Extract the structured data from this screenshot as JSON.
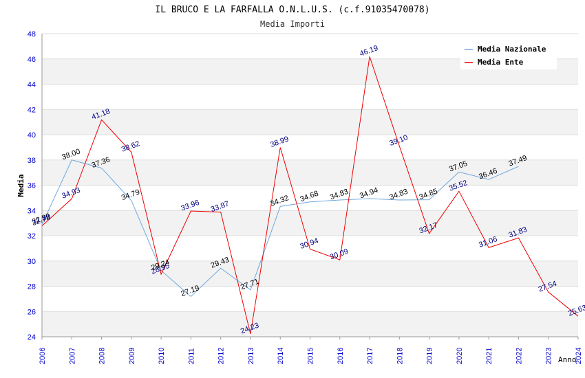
{
  "chart_data": {
    "type": "line",
    "title": "IL BRUCO E LA FARFALLA O.N.L.U.S. (c.f.91035470078)",
    "subtitle": "Media Importi",
    "ylabel": "Media",
    "xlabel": "Anno",
    "ylim": [
      24,
      48
    ],
    "yticks": [
      24,
      26,
      28,
      30,
      32,
      34,
      36,
      38,
      40,
      42,
      44,
      46,
      48
    ],
    "x": [
      "2006",
      "2007",
      "2008",
      "2009",
      "2010",
      "2011",
      "2012",
      "2013",
      "2014",
      "2015",
      "2016",
      "2017",
      "2018",
      "2019",
      "2020",
      "2021",
      "2022",
      "2023",
      "2024"
    ],
    "series": [
      {
        "name": "Media Nazionale",
        "color": "#6fa8dc",
        "label_color": "#000000",
        "values": [
          32.89,
          38.0,
          37.36,
          34.79,
          29.24,
          27.19,
          29.43,
          27.71,
          34.32,
          34.68,
          34.83,
          34.94,
          34.83,
          34.85,
          37.05,
          36.46,
          37.49,
          null,
          null
        ],
        "labels": [
          "32.89",
          "38.00",
          "37.36",
          "34.79",
          "29.24",
          "27.19",
          "29.43",
          "27.71",
          "34.32",
          "34.68",
          "34.83",
          "34.94",
          "34.83",
          "34.85",
          "37.05",
          "36.46",
          "37.49",
          null,
          null
        ]
      },
      {
        "name": "Media Ente",
        "color": "#ee0000",
        "label_color": "#000080",
        "values": [
          32.78,
          34.93,
          41.18,
          38.62,
          28.95,
          33.96,
          33.87,
          24.23,
          38.99,
          30.94,
          30.09,
          46.19,
          39.1,
          32.17,
          35.52,
          31.06,
          31.83,
          27.54,
          25.63
        ],
        "labels": [
          "32.78",
          "34.93",
          "41.18",
          "38.62",
          "28.95",
          "33.96",
          "33.87",
          "24.23",
          "38.99",
          "30.94",
          "30.09",
          "46.19",
          "39.10",
          "32.17",
          "35.52",
          "31.06",
          "31.83",
          "27.54",
          "25.63"
        ]
      }
    ],
    "legend_position": "top-right",
    "grid": true
  }
}
